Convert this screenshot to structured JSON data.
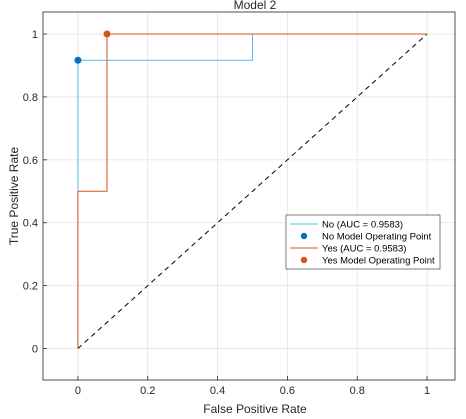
{
  "chart_data": {
    "type": "line",
    "title": "Model 2",
    "xlabel": "False Positive Rate",
    "ylabel": "True Positive Rate",
    "xlim": [
      -0.1,
      1.08
    ],
    "ylim": [
      -0.1,
      1.07
    ],
    "xticks": [
      0,
      0.2,
      0.4,
      0.6,
      0.8,
      1
    ],
    "xtick_labels": [
      "0",
      "0.2",
      "0.4",
      "0.6",
      "0.8",
      "1"
    ],
    "yticks": [
      0,
      0.2,
      0.4,
      0.6,
      0.8,
      1
    ],
    "ytick_labels": [
      "0",
      "0.2",
      "0.4",
      "0.6",
      "0.8",
      "1"
    ],
    "grid": true,
    "legend_position": "right",
    "series": [
      {
        "name": "No (AUC = 0.9583)",
        "color": "#4DBEEE",
        "x": [
          0,
          0,
          0.5,
          0.5,
          1
        ],
        "y": [
          0,
          0.9167,
          0.9167,
          1,
          1
        ]
      },
      {
        "name": "Yes (AUC = 0.9583)",
        "color": "#D95319",
        "x": [
          0,
          0,
          0.0833,
          0.0833,
          1
        ],
        "y": [
          0,
          0.5,
          0.5,
          1,
          1
        ]
      }
    ],
    "operating_points": [
      {
        "name": "No Model Operating Point",
        "color": "#0072BD",
        "x": 0,
        "y": 0.9167
      },
      {
        "name": "Yes Model Operating Point",
        "color": "#D95319",
        "x": 0.0833,
        "y": 1
      }
    ],
    "reference_line": {
      "x": [
        0,
        1
      ],
      "y": [
        0,
        1
      ],
      "color": "#000000",
      "style": "dashed"
    }
  }
}
